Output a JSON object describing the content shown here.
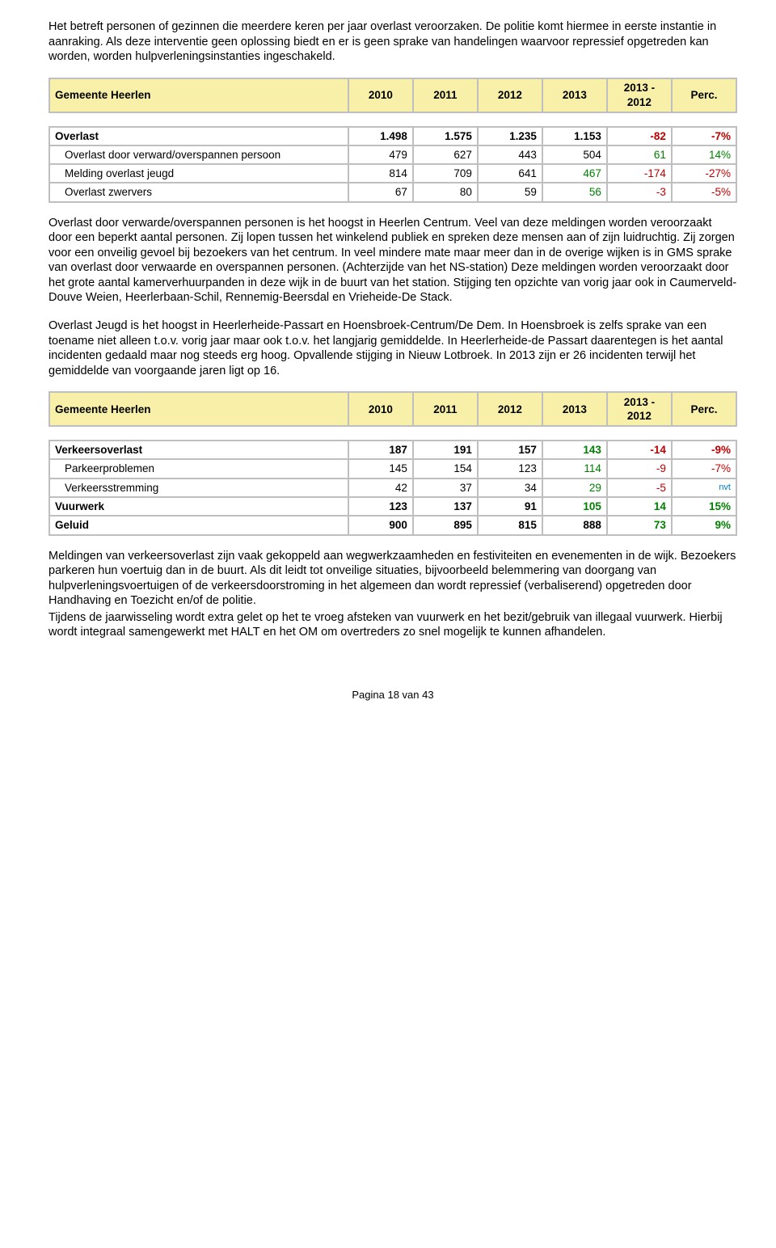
{
  "para1": "Het betreft personen of gezinnen die meerdere keren per jaar overlast veroorzaken. De politie komt hiermee in eerste instantie in aanraking. Als deze interventie geen oplossing biedt en er is geen sprake van handelingen waarvoor repressief opgetreden kan worden, worden hulpverleningsinstanties ingeschakeld.",
  "header": {
    "title": "Gemeente Heerlen",
    "cols": [
      "2010",
      "2011",
      "2012",
      "2013",
      "2013 - 2012",
      "Perc."
    ]
  },
  "table1": {
    "rows": [
      {
        "bold": true,
        "label": "Overlast",
        "vals": [
          "1.498",
          "1.575",
          "1.235",
          "1.153",
          "-82",
          "-7%"
        ],
        "colorDiff": "red",
        "colorPerc": "red"
      },
      {
        "bold": false,
        "label": "Overlast door verward/overspannen persoon",
        "indent": true,
        "vals": [
          "479",
          "627",
          "443",
          "504",
          "61",
          "14%"
        ],
        "colorDiff": "green",
        "colorPerc": "green"
      },
      {
        "bold": false,
        "label": "Melding overlast jeugd",
        "indent": true,
        "vals": [
          "814",
          "709",
          "641",
          "467",
          "-174",
          "-27%"
        ],
        "color13": "green",
        "colorDiff": "red",
        "colorPerc": "red"
      },
      {
        "bold": false,
        "label": "Overlast zwervers",
        "indent": true,
        "vals": [
          "67",
          "80",
          "59",
          "56",
          "-3",
          "-5%"
        ],
        "color13": "green",
        "colorDiff": "red",
        "colorPerc": "red"
      }
    ]
  },
  "para2": "Overlast door verwarde/overspannen personen is het hoogst in Heerlen Centrum. Veel van deze meldingen worden veroorzaakt door een beperkt aantal personen. Zij lopen tussen het winkelend publiek en spreken deze mensen aan of zijn luidruchtig. Zij zorgen voor een onveilig gevoel bij bezoekers van het centrum. In veel mindere mate maar meer dan in de overige wijken is in GMS sprake van overlast door verwaarde en overspannen personen. (Achterzijde van het NS-station) Deze meldingen worden veroorzaakt door het grote aantal kamerverhuurpanden in deze wijk in de buurt van het station. Stijging ten opzichte van vorig jaar ook in Caumerveld-Douve Weien, Heerlerbaan-Schil, Rennemig-Beersdal en Vrieheide-De Stack.",
  "para3": "Overlast Jeugd is het hoogst in Heerlerheide-Passart en Hoensbroek-Centrum/De Dem. In Hoensbroek is zelfs sprake van een toename niet alleen t.o.v. vorig jaar maar ook t.o.v. het langjarig gemiddelde. In Heerlerheide-de Passart daarentegen is het aantal incidenten gedaald maar  nog steeds erg hoog. Opvallende stijging in Nieuw Lotbroek. In 2013 zijn er 26 incidenten terwijl het gemiddelde van voorgaande jaren ligt op 16.",
  "table2": {
    "rows": [
      {
        "bold": true,
        "label": "Verkeersoverlast",
        "vals": [
          "187",
          "191",
          "157",
          "143",
          "-14",
          "-9%"
        ],
        "color13": "green",
        "colorDiff": "red",
        "colorPerc": "red"
      },
      {
        "bold": false,
        "label": "Parkeerproblemen",
        "indent": true,
        "vals": [
          "145",
          "154",
          "123",
          "114",
          "-9",
          "-7%"
        ],
        "color13": "green",
        "colorDiff": "red",
        "colorPerc": "red"
      },
      {
        "bold": false,
        "label": "Verkeersstremming",
        "indent": true,
        "vals": [
          "42",
          "37",
          "34",
          "29",
          "-5",
          "nvt"
        ],
        "color13": "green",
        "colorDiff": "red",
        "nvt": true
      },
      {
        "bold": true,
        "label": "Vuurwerk",
        "vals": [
          "123",
          "137",
          "91",
          "105",
          "14",
          "15%"
        ],
        "color13": "green",
        "colorDiff": "green",
        "colorPerc": "green"
      },
      {
        "bold": true,
        "label": "Geluid",
        "vals": [
          "900",
          "895",
          "815",
          "888",
          "73",
          "9%"
        ],
        "colorDiff": "green",
        "colorPerc": "green"
      }
    ]
  },
  "para4": "Meldingen van verkeersoverlast zijn vaak gekoppeld aan wegwerkzaamheden en festiviteiten en evenementen in de wijk. Bezoekers parkeren hun voertuig dan in de buurt. Als dit leidt tot onveilige situaties, bijvoorbeeld belemmering van doorgang van hulpverleningsvoertuigen of de verkeersdoorstroming in het algemeen dan wordt repressief (verbaliserend) opgetreden door Handhaving en Toezicht en/of de politie.",
  "para5": "Tijdens de jaarwisseling wordt extra gelet op het te vroeg afsteken van vuurwerk en het bezit/gebruik van illegaal vuurwerk. Hierbij wordt integraal samengewerkt met HALT en het OM om overtreders zo snel mogelijk te kunnen afhandelen.",
  "footer": "Pagina 18 van 43",
  "colors": {
    "green": "#008000",
    "red": "#c00000",
    "headerBg": "#f8f0a8",
    "tableBg": "#bfbfbf"
  }
}
